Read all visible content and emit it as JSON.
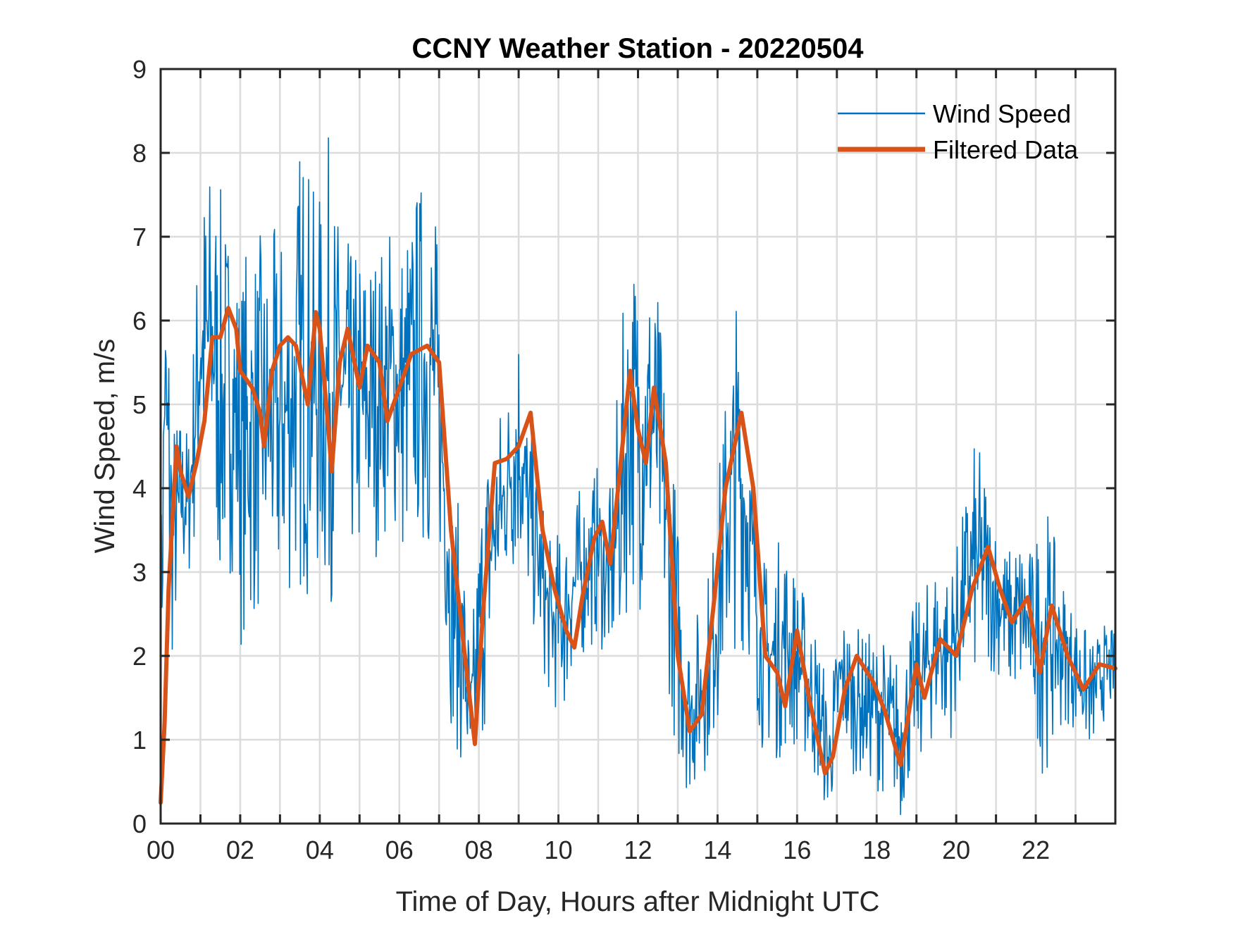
{
  "chart_data": {
    "type": "line",
    "title": "CCNY Weather Station - 20220504",
    "xlabel": "Time of Day, Hours after Midnight UTC",
    "ylabel": "Wind Speed, m/s",
    "xlim": [
      0,
      24
    ],
    "ylim": [
      0,
      9
    ],
    "x_ticks": [
      0,
      2,
      4,
      6,
      8,
      10,
      12,
      14,
      16,
      18,
      20,
      22
    ],
    "x_tick_labels": [
      "00",
      "02",
      "04",
      "06",
      "08",
      "10",
      "12",
      "14",
      "16",
      "18",
      "20",
      "22"
    ],
    "x_minor_ticks": [
      1,
      3,
      5,
      7,
      9,
      11,
      13,
      15,
      17,
      19,
      21,
      23
    ],
    "y_ticks": [
      0,
      1,
      2,
      3,
      4,
      5,
      6,
      7,
      8,
      9
    ],
    "y_tick_labels": [
      "0",
      "1",
      "2",
      "3",
      "4",
      "5",
      "6",
      "7",
      "8",
      "9"
    ],
    "grid": true,
    "legend_position": "top-right",
    "series": [
      {
        "name": "Wind Speed",
        "color": "#0072BD",
        "style": "thin",
        "note": "raw noisy signal; envelope approximated",
        "x": [
          0,
          0.1,
          0.2,
          0.3,
          0.5,
          0.7,
          1.0,
          1.3,
          1.5,
          1.8,
          2.0,
          2.3,
          2.6,
          3.0,
          3.3,
          3.6,
          3.9,
          4.2,
          4.5,
          4.8,
          5.1,
          5.5,
          5.8,
          6.1,
          6.5,
          6.8,
          7.0,
          7.3,
          7.6,
          7.8,
          8.1,
          8.4,
          8.7,
          9.0,
          9.2,
          9.5,
          9.8,
          10.1,
          10.4,
          10.7,
          11.0,
          11.3,
          11.6,
          11.8,
          12.1,
          12.4,
          12.7,
          13.0,
          13.3,
          13.6,
          13.9,
          14.2,
          14.5,
          14.8,
          15.1,
          15.4,
          15.7,
          16.0,
          16.3,
          16.6,
          16.8,
          17.1,
          17.4,
          17.7,
          18.0,
          18.3,
          18.6,
          18.9,
          19.2,
          19.5,
          19.8,
          20.1,
          20.4,
          20.7,
          21.0,
          21.3,
          21.6,
          21.9,
          22.2,
          22.5,
          22.8,
          23.1,
          23.4,
          23.7,
          24.0
        ],
        "y_max": [
          3.5,
          6.9,
          6.8,
          5.0,
          5.0,
          4.8,
          7.7,
          8.1,
          7.6,
          7.3,
          6.8,
          7.2,
          7.0,
          7.2,
          7.4,
          8.7,
          7.3,
          8.3,
          7.2,
          6.9,
          7.2,
          7.0,
          7.3,
          7.2,
          7.8,
          8.0,
          6.8,
          4.2,
          3.6,
          2.1,
          4.6,
          5.0,
          5.2,
          6.4,
          5.1,
          4.2,
          3.4,
          3.6,
          3.9,
          4.2,
          4.3,
          4.0,
          6.0,
          7.0,
          7.0,
          6.8,
          5.5,
          3.8,
          2.4,
          2.7,
          3.5,
          5.3,
          6.5,
          5.0,
          3.2,
          3.3,
          3.6,
          3.0,
          2.7,
          2.2,
          1.5,
          2.7,
          2.4,
          2.3,
          2.3,
          2.2,
          2.0,
          2.6,
          2.8,
          3.3,
          3.1,
          3.5,
          4.6,
          4.4,
          3.7,
          3.3,
          3.6,
          3.3,
          4.1,
          3.3,
          2.8,
          2.5,
          2.2,
          2.4,
          2.3
        ],
        "y_min": [
          0.2,
          3.5,
          1.8,
          1.8,
          2.7,
          2.8,
          3.6,
          3.5,
          2.5,
          3.0,
          2.1,
          2.3,
          2.4,
          2.3,
          2.7,
          2.6,
          2.8,
          2.3,
          3.4,
          3.0,
          2.7,
          3.3,
          3.5,
          3.0,
          3.3,
          3.0,
          3.2,
          1.2,
          0.5,
          0.0,
          0.9,
          2.0,
          2.8,
          2.9,
          2.6,
          2.0,
          1.4,
          1.2,
          1.8,
          2.0,
          2.2,
          1.7,
          2.0,
          2.8,
          2.5,
          2.8,
          1.9,
          0.6,
          0.3,
          0.5,
          0.9,
          1.6,
          2.2,
          1.9,
          0.9,
          0.7,
          0.8,
          0.9,
          0.6,
          0.3,
          0.0,
          0.8,
          0.6,
          0.5,
          0.4,
          0.3,
          0.0,
          0.6,
          0.8,
          1.0,
          0.9,
          1.4,
          1.6,
          1.7,
          1.8,
          1.5,
          1.4,
          1.3,
          0.5,
          1.0,
          1.2,
          1.0,
          0.8,
          1.2,
          1.4
        ]
      },
      {
        "name": "Filtered Data",
        "color": "#D95319",
        "style": "thick",
        "x": [
          0,
          0.1,
          0.2,
          0.4,
          0.5,
          0.7,
          0.9,
          1.1,
          1.3,
          1.5,
          1.7,
          1.9,
          2.0,
          2.3,
          2.5,
          2.6,
          2.8,
          3.0,
          3.2,
          3.4,
          3.7,
          3.9,
          4.0,
          4.2,
          4.3,
          4.5,
          4.7,
          5.0,
          5.2,
          5.5,
          5.7,
          6.0,
          6.3,
          6.7,
          7.0,
          7.3,
          7.6,
          7.9,
          8.1,
          8.4,
          8.7,
          9.0,
          9.3,
          9.6,
          9.9,
          10.2,
          10.4,
          10.6,
          10.9,
          11.1,
          11.3,
          11.5,
          11.8,
          12.0,
          12.2,
          12.4,
          12.7,
          13.0,
          13.3,
          13.6,
          13.9,
          14.2,
          14.6,
          14.9,
          15.2,
          15.5,
          15.7,
          16.0,
          16.3,
          16.7,
          16.9,
          17.2,
          17.5,
          17.9,
          18.2,
          18.6,
          19.0,
          19.2,
          19.6,
          20.0,
          20.4,
          20.8,
          21.1,
          21.4,
          21.8,
          22.1,
          22.4,
          22.8,
          23.2,
          23.6,
          24.0
        ],
        "y": [
          0.25,
          1.2,
          2.8,
          4.5,
          4.2,
          3.9,
          4.3,
          4.8,
          5.8,
          5.8,
          6.15,
          5.9,
          5.4,
          5.2,
          4.9,
          4.5,
          5.4,
          5.7,
          5.8,
          5.7,
          5.0,
          6.1,
          5.9,
          4.8,
          4.2,
          5.5,
          5.9,
          5.2,
          5.7,
          5.5,
          4.8,
          5.2,
          5.6,
          5.7,
          5.5,
          3.5,
          2.2,
          0.95,
          2.5,
          4.3,
          4.35,
          4.5,
          4.9,
          3.5,
          2.8,
          2.3,
          2.1,
          2.7,
          3.4,
          3.6,
          3.1,
          4.0,
          5.4,
          4.7,
          4.3,
          5.2,
          4.3,
          2.0,
          1.1,
          1.3,
          2.6,
          4.0,
          4.9,
          4.0,
          2.0,
          1.8,
          1.4,
          2.3,
          1.5,
          0.6,
          0.8,
          1.6,
          2.0,
          1.7,
          1.35,
          0.7,
          1.9,
          1.5,
          2.2,
          2.0,
          2.8,
          3.3,
          2.8,
          2.4,
          2.7,
          1.8,
          2.6,
          2.0,
          1.6,
          1.9,
          1.85
        ]
      }
    ]
  }
}
